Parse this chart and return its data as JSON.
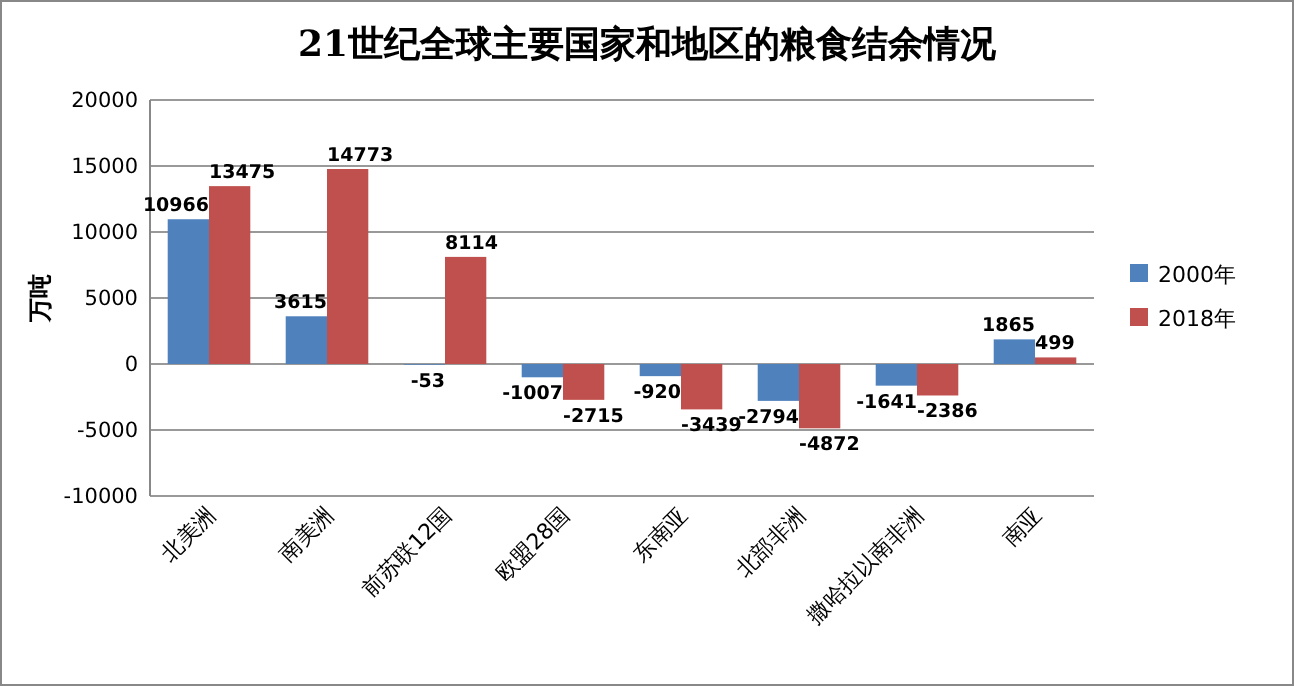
{
  "chart_data": {
    "type": "bar",
    "title": "21世纪全球主要国家和地区的粮食结余情况",
    "ylabel": "万吨",
    "categories": [
      "北美洲",
      "南美洲",
      "前苏联12国",
      "欧盟28国",
      "东南亚",
      "北部非洲",
      "撒哈拉以南非洲",
      "南亚"
    ],
    "series": [
      {
        "name": "2000年",
        "color": "#4f81bd",
        "values": [
          10966,
          3615,
          -53,
          -1007,
          -920,
          -2794,
          -1641,
          1865
        ]
      },
      {
        "name": "2018年",
        "color": "#c0504d",
        "values": [
          13475,
          14773,
          8114,
          -2715,
          -3439,
          -4872,
          -2386,
          499
        ]
      }
    ],
    "ylim": [
      -10000,
      20000
    ],
    "yticks": [
      -10000,
      -5000,
      0,
      5000,
      10000,
      15000,
      20000
    ],
    "grid": "y",
    "legend": "right",
    "data_labels": true
  }
}
